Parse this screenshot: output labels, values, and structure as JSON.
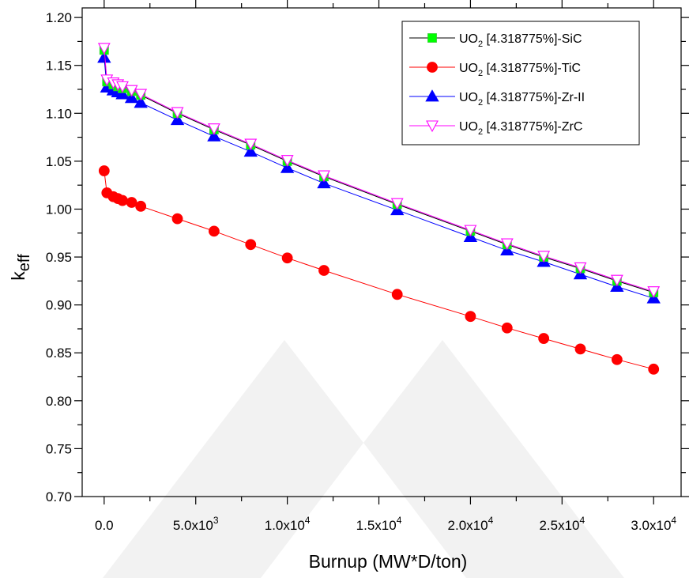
{
  "chart_data": {
    "type": "line",
    "title": "",
    "xlabel": "Burnup (MW*D/ton)",
    "ylabel_main": "k",
    "ylabel_sub": "eff",
    "xlim": [
      -1200,
      31500
    ],
    "ylim": [
      0.7,
      1.21
    ],
    "x_ticks": [
      {
        "value": 0,
        "mantissa": "0.0",
        "exp": ""
      },
      {
        "value": 5000,
        "mantissa": "5.0x10",
        "exp": "3"
      },
      {
        "value": 10000,
        "mantissa": "1.0x10",
        "exp": "4"
      },
      {
        "value": 15000,
        "mantissa": "1.5x10",
        "exp": "4"
      },
      {
        "value": 20000,
        "mantissa": "2.0x10",
        "exp": "4"
      },
      {
        "value": 25000,
        "mantissa": "2.5x10",
        "exp": "4"
      },
      {
        "value": 30000,
        "mantissa": "3.0x10",
        "exp": "4"
      }
    ],
    "y_ticks": [
      "0.70",
      "0.75",
      "0.80",
      "0.85",
      "0.90",
      "0.95",
      "1.00",
      "1.05",
      "1.10",
      "1.15",
      "1.20"
    ],
    "grid": false,
    "legend_position": "top-right",
    "x": [
      0,
      150,
      500,
      750,
      1000,
      1500,
      2000,
      4000,
      6000,
      8000,
      10000,
      12000,
      16000,
      20000,
      22000,
      24000,
      26000,
      28000,
      30000
    ],
    "series": [
      {
        "name_pre": "UO",
        "name_sub": "2",
        "name_post": " [4.318775%]-SiC",
        "color": "#000000",
        "marker": "square",
        "marker_color": "#00ff00",
        "y": [
          1.166,
          1.133,
          1.13,
          1.128,
          1.126,
          1.123,
          1.119,
          1.1,
          1.083,
          1.067,
          1.05,
          1.034,
          1.005,
          0.977,
          0.963,
          0.95,
          0.938,
          0.925,
          0.913
        ]
      },
      {
        "name_pre": "UO",
        "name_sub": "2",
        "name_post": " [4.318775%]-TiC",
        "color": "#ff0000",
        "marker": "circle",
        "marker_color": "#ff0000",
        "y": [
          1.04,
          1.017,
          1.013,
          1.011,
          1.009,
          1.007,
          1.003,
          0.99,
          0.977,
          0.963,
          0.949,
          0.936,
          0.911,
          0.888,
          0.876,
          0.865,
          0.854,
          0.843,
          0.833
        ]
      },
      {
        "name_pre": "UO",
        "name_sub": "2",
        "name_post": " [4.318775%]-Zr-II",
        "color": "#0000ff",
        "marker": "triangle-up",
        "marker_color": "#0000ff",
        "y": [
          1.158,
          1.127,
          1.124,
          1.122,
          1.12,
          1.116,
          1.111,
          1.093,
          1.076,
          1.06,
          1.043,
          1.027,
          0.999,
          0.971,
          0.957,
          0.945,
          0.932,
          0.919,
          0.907
        ]
      },
      {
        "name_pre": "UO",
        "name_sub": "2",
        "name_post": " [4.318775%]-ZrC",
        "color": "#ff00ff",
        "marker": "triangle-down",
        "marker_color": "#ffffff",
        "y": [
          1.168,
          1.135,
          1.132,
          1.13,
          1.128,
          1.124,
          1.12,
          1.101,
          1.084,
          1.068,
          1.051,
          1.035,
          1.006,
          0.978,
          0.964,
          0.951,
          0.939,
          0.926,
          0.914
        ]
      }
    ]
  },
  "watermark_color": "#f2f2f2"
}
